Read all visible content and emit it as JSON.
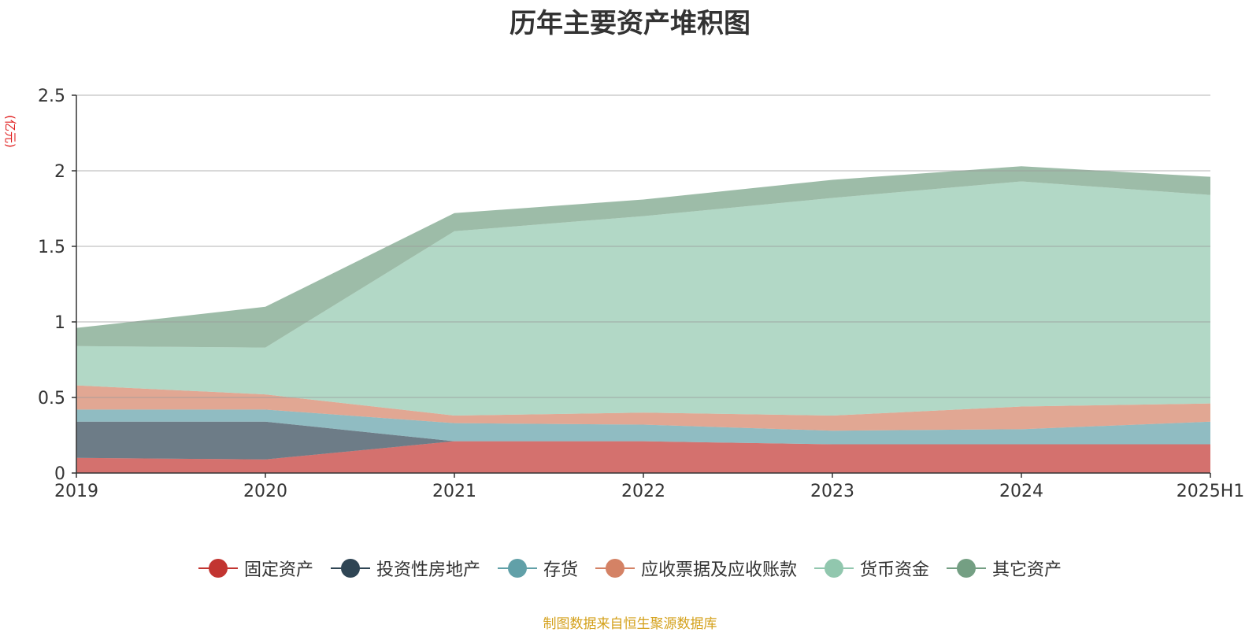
{
  "chart_data": {
    "type": "area",
    "stacked": true,
    "title": "历年主要资产堆积图",
    "unit": "(亿元)",
    "categories": [
      "2019",
      "2020",
      "2021",
      "2022",
      "2023",
      "2024",
      "2025H1"
    ],
    "ylim": [
      0,
      2.5
    ],
    "yticks": [
      "0",
      "0.5",
      "1",
      "1.5",
      "2",
      "2.5"
    ],
    "grid": true,
    "legend_position": "bottom",
    "series": [
      {
        "name": "固定资产",
        "color": "#c23531",
        "values": [
          0.1,
          0.09,
          0.21,
          0.21,
          0.19,
          0.19,
          0.19
        ]
      },
      {
        "name": "投资性房地产",
        "color": "#2f4554",
        "values": [
          0.24,
          0.25,
          0.0,
          0.0,
          0.0,
          0.0,
          0.0
        ]
      },
      {
        "name": "存货",
        "color": "#61a0a8",
        "values": [
          0.08,
          0.08,
          0.12,
          0.11,
          0.09,
          0.1,
          0.15
        ]
      },
      {
        "name": "应收票据及应收账款",
        "color": "#d48265",
        "values": [
          0.16,
          0.1,
          0.05,
          0.08,
          0.1,
          0.15,
          0.12
        ]
      },
      {
        "name": "货币资金",
        "color": "#91c7ae",
        "values": [
          0.26,
          0.31,
          1.22,
          1.3,
          1.44,
          1.49,
          1.38
        ]
      },
      {
        "name": "其它资产",
        "color": "#749f83",
        "values": [
          0.12,
          0.27,
          0.12,
          0.11,
          0.12,
          0.1,
          0.12
        ]
      }
    ]
  },
  "footer": {
    "source": "制图数据来自恒生聚源数据库"
  }
}
